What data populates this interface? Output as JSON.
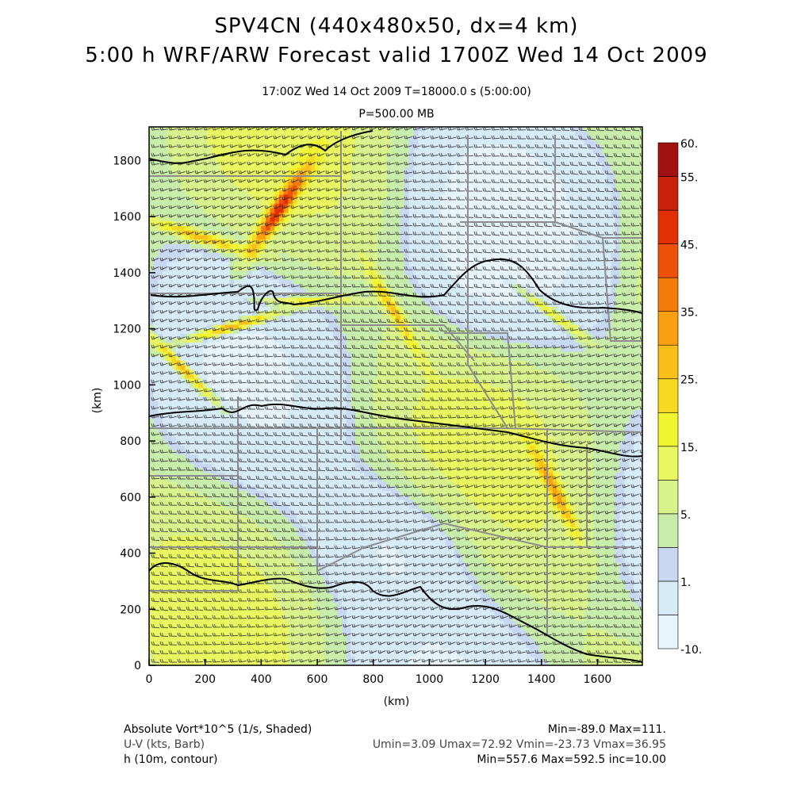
{
  "header": {
    "line1": "SPV4CN (440x480x50, dx=4 km)",
    "line2": "5:00 h WRF/ARW Forecast valid 1700Z Wed 14 Oct 2009",
    "line3": "17:00Z Wed 14 Oct 2009     T=18000.0 s (5:00:00)",
    "line4": "P=500.00 MB"
  },
  "chart_data": {
    "type": "heatmap",
    "xlabel": "(km)",
    "ylabel": "(km)",
    "xlim": [
      0,
      1760
    ],
    "ylim": [
      0,
      1920
    ],
    "x_ticks": [
      "0",
      "200",
      "400",
      "600",
      "800",
      "1000",
      "1200",
      "1400",
      "1600"
    ],
    "y_ticks": [
      "0",
      "200",
      "400",
      "600",
      "800",
      "1000",
      "1200",
      "1400",
      "1600",
      "1800"
    ],
    "colorbar": {
      "labels": [
        "60.",
        "55.",
        "45.",
        "35.",
        "25.",
        "15.",
        "5.",
        "1.",
        "-10."
      ],
      "levels": [
        -10,
        -5,
        1,
        2,
        5,
        10,
        15,
        20,
        25,
        30,
        35,
        40,
        45,
        50,
        55,
        60
      ],
      "colors": [
        "#e8f4fc",
        "#d6eaf8",
        "#c9d8f2",
        "#c8ecaa",
        "#d8f28c",
        "#e9f760",
        "#f0f530",
        "#f8d820",
        "#fbbf1a",
        "#f8a010",
        "#f47a0a",
        "#ee5208",
        "#e23005",
        "#c8200a",
        "#a01010"
      ]
    },
    "contour_h_10m_lines": [
      557.6,
      592.5
    ],
    "notes": "Absolute vorticity shaded with wind barbs and 10m height contours"
  },
  "footer": {
    "left1": "Absolute Vort*10^5 (1/s, Shaded)",
    "left2": "U-V (kts, Barb)",
    "left3": "h (10m, contour)",
    "right1": "Min=-89.0 Max=111.",
    "right2": "Umin=3.09 Umax=72.92 Vmin=-23.73 Vmax=36.95",
    "right3": "Min=557.6 Max=592.5 inc=10.00"
  }
}
